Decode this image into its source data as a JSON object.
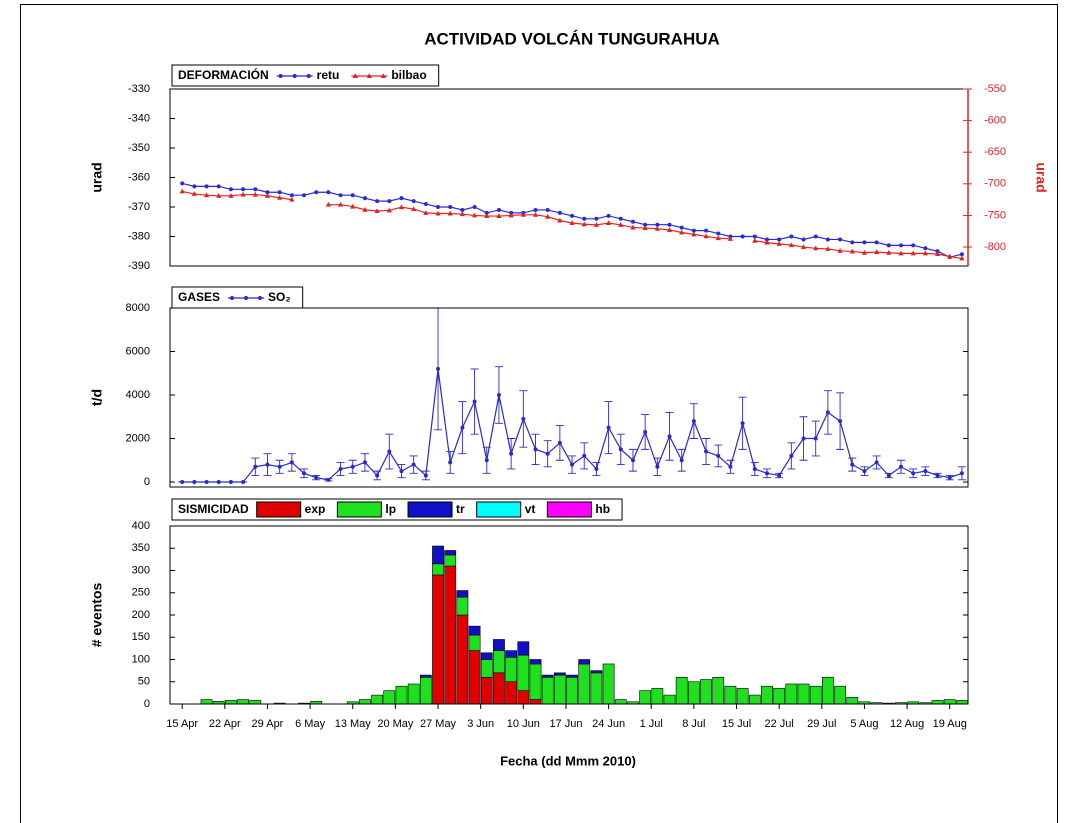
{
  "title": "ACTIVIDAD VOLCÁN TUNGURAHUA",
  "chart_data": [
    {
      "type": "line",
      "legend_title": "DEFORMACIÓN",
      "ylabel": "urad",
      "y2label": "urad",
      "xlim": [
        -2,
        129
      ],
      "x": [
        0,
        2,
        4,
        6,
        8,
        10,
        12,
        14,
        16,
        18,
        20,
        22,
        24,
        26,
        28,
        30,
        32,
        34,
        36,
        38,
        40,
        42,
        44,
        46,
        48,
        50,
        52,
        54,
        56,
        58,
        60,
        62,
        64,
        66,
        68,
        70,
        72,
        74,
        76,
        78,
        80,
        82,
        84,
        86,
        88,
        90,
        92,
        94,
        96,
        98,
        100,
        102,
        104,
        106,
        108,
        110,
        112,
        114,
        116,
        118,
        120,
        122,
        124,
        126,
        128
      ],
      "ylim": [
        -390,
        -330
      ],
      "yticks": [
        -390,
        -380,
        -370,
        -360,
        -350,
        -340,
        -330
      ],
      "y2lim": [
        -830,
        -550
      ],
      "y2ticks": [
        -800,
        -750,
        -700,
        -650,
        -600,
        -550
      ],
      "series": [
        {
          "name": "retu",
          "color": "#2a2ad6",
          "marker": "circle",
          "values": [
            -362,
            -363,
            -363,
            -363,
            -364,
            -364,
            -364,
            -365,
            -365,
            -366,
            -366,
            -365,
            -365,
            -366,
            -366,
            -367,
            -368,
            -368,
            -367,
            -368,
            -369,
            -370,
            -370,
            -371,
            -370,
            -372,
            -371,
            -372,
            -372,
            -371,
            -371,
            -372,
            -373,
            -374,
            -374,
            -373,
            -374,
            -375,
            -376,
            -376,
            -376,
            -377,
            -378,
            -378,
            -379,
            -380,
            -380,
            -380,
            -381,
            -381,
            -380,
            -381,
            -380,
            -381,
            -381,
            -382,
            -382,
            -382,
            -383,
            -383,
            -383,
            -384,
            -385,
            -387,
            -386
          ]
        },
        {
          "name": "bilbao",
          "color": "#e02424",
          "marker": "triangle",
          "axis": "y2",
          "values": [
            -712,
            -716,
            -718,
            -719,
            -719,
            -717,
            -717,
            -719,
            -722,
            -725,
            null,
            null,
            -733,
            -733,
            -736,
            -741,
            -743,
            -742,
            -737,
            -740,
            -746,
            -747,
            -747,
            -748,
            -750,
            -751,
            -751,
            -750,
            -749,
            -749,
            -752,
            -758,
            -762,
            -764,
            -765,
            -762,
            -765,
            -769,
            -770,
            -771,
            -773,
            -777,
            -780,
            -783,
            -786,
            -787,
            null,
            -790,
            -793,
            -795,
            -797,
            -800,
            -802,
            -803,
            -806,
            -807,
            -809,
            -808,
            -809,
            -810,
            -810,
            -810,
            -811,
            -815,
            -818
          ]
        }
      ]
    },
    {
      "type": "line",
      "legend_title": "GASES",
      "ylabel": "t/d",
      "xlim": [
        -2,
        129
      ],
      "x": [
        0,
        2,
        4,
        6,
        8,
        10,
        12,
        14,
        16,
        18,
        20,
        22,
        24,
        26,
        28,
        30,
        32,
        34,
        36,
        38,
        40,
        42,
        44,
        46,
        48,
        50,
        52,
        54,
        56,
        58,
        60,
        62,
        64,
        66,
        68,
        70,
        72,
        74,
        76,
        78,
        80,
        82,
        84,
        86,
        88,
        90,
        92,
        94,
        96,
        98,
        100,
        102,
        104,
        106,
        108,
        110,
        112,
        114,
        116,
        118,
        120,
        122,
        124,
        126,
        128
      ],
      "ylim": [
        -230,
        8000
      ],
      "yticks": [
        0,
        2000,
        4000,
        6000,
        8000
      ],
      "series": [
        {
          "name": "SO₂",
          "color": "#2a2ac8",
          "marker": "circle",
          "values": [
            0,
            0,
            0,
            0,
            0,
            0,
            700,
            800,
            700,
            900,
            400,
            200,
            100,
            600,
            700,
            900,
            300,
            1400,
            500,
            800,
            300,
            5200,
            900,
            2500,
            3700,
            1000,
            4000,
            1300,
            2900,
            1500,
            1300,
            1800,
            800,
            1200,
            600,
            2500,
            1500,
            1000,
            2300,
            700,
            2100,
            1000,
            2800,
            1400,
            1200,
            700,
            2700,
            600,
            400,
            300,
            1200,
            2000,
            2000,
            3200,
            2800,
            800,
            500,
            900,
            300,
            700,
            400,
            500,
            300,
            200,
            400
          ],
          "errors": [
            0,
            0,
            0,
            0,
            0,
            0,
            400,
            500,
            300,
            400,
            200,
            100,
            50,
            300,
            300,
            400,
            200,
            800,
            300,
            400,
            200,
            2800,
            500,
            1200,
            1500,
            600,
            1300,
            700,
            1300,
            700,
            600,
            800,
            400,
            600,
            300,
            1200,
            700,
            500,
            800,
            400,
            1100,
            500,
            800,
            600,
            500,
            300,
            1200,
            300,
            200,
            100,
            600,
            1000,
            800,
            1000,
            1300,
            300,
            200,
            300,
            100,
            300,
            200,
            200,
            100,
            100,
            300
          ]
        }
      ]
    },
    {
      "type": "bar",
      "legend_title": "SISMICIDAD",
      "ylabel": "# eventos",
      "xlabel": "Fecha (dd Mmm 2010)",
      "xlim": [
        -2,
        129
      ],
      "xticks": [
        {
          "value": 0,
          "label": "15 Apr"
        },
        {
          "value": 7,
          "label": "22 Apr"
        },
        {
          "value": 14,
          "label": "29 Apr"
        },
        {
          "value": 21,
          "label": "6 May"
        },
        {
          "value": 28,
          "label": "13 May"
        },
        {
          "value": 35,
          "label": "20 May"
        },
        {
          "value": 42,
          "label": "27 May"
        },
        {
          "value": 49,
          "label": "3 Jun"
        },
        {
          "value": 56,
          "label": "10 Jun"
        },
        {
          "value": 63,
          "label": "17 Jun"
        },
        {
          "value": 70,
          "label": "24 Jun"
        },
        {
          "value": 77,
          "label": "1 Jul"
        },
        {
          "value": 84,
          "label": "8 Jul"
        },
        {
          "value": 91,
          "label": "15 Jul"
        },
        {
          "value": 98,
          "label": "22 Jul"
        },
        {
          "value": 105,
          "label": "29 Jul"
        },
        {
          "value": 112,
          "label": "5 Aug"
        },
        {
          "value": 119,
          "label": "12 Aug"
        },
        {
          "value": 126,
          "label": "19 Aug"
        }
      ],
      "x": [
        0,
        2,
        4,
        6,
        8,
        10,
        12,
        14,
        16,
        18,
        20,
        22,
        24,
        26,
        28,
        30,
        32,
        34,
        36,
        38,
        40,
        42,
        44,
        46,
        48,
        50,
        52,
        54,
        56,
        58,
        60,
        62,
        64,
        66,
        68,
        70,
        72,
        74,
        76,
        78,
        80,
        82,
        84,
        86,
        88,
        90,
        92,
        94,
        96,
        98,
        100,
        102,
        104,
        106,
        108,
        110,
        112,
        114,
        116,
        118,
        120,
        122,
        124,
        126,
        128
      ],
      "ylim": [
        0,
        400
      ],
      "yticks": [
        0,
        50,
        100,
        150,
        200,
        250,
        300,
        350,
        400
      ],
      "series": [
        {
          "name": "exp",
          "color": "#e00000",
          "values": [
            0,
            0,
            0,
            0,
            0,
            0,
            0,
            0,
            0,
            0,
            0,
            0,
            0,
            0,
            0,
            0,
            0,
            0,
            0,
            0,
            0,
            290,
            310,
            200,
            120,
            60,
            70,
            50,
            30,
            10,
            0,
            0,
            0,
            0,
            0,
            0,
            0,
            0,
            0,
            0,
            0,
            0,
            0,
            0,
            0,
            0,
            0,
            0,
            0,
            0,
            0,
            0,
            0,
            0,
            0,
            0,
            0,
            0,
            0,
            0,
            0,
            0,
            0,
            0,
            0
          ]
        },
        {
          "name": "lp",
          "color": "#1ee01e",
          "values": [
            0,
            0,
            10,
            6,
            8,
            10,
            8,
            0,
            2,
            0,
            2,
            6,
            0,
            0,
            5,
            10,
            20,
            30,
            40,
            45,
            60,
            25,
            25,
            40,
            35,
            40,
            50,
            55,
            80,
            80,
            60,
            65,
            60,
            90,
            70,
            90,
            10,
            5,
            30,
            35,
            20,
            60,
            50,
            55,
            60,
            40,
            35,
            20,
            40,
            35,
            45,
            45,
            40,
            60,
            40,
            15,
            5,
            3,
            2,
            3,
            5,
            3,
            8,
            10,
            8
          ]
        },
        {
          "name": "tr",
          "color": "#1010c8",
          "values": [
            0,
            0,
            0,
            0,
            0,
            0,
            0,
            0,
            0,
            0,
            0,
            0,
            0,
            0,
            0,
            0,
            0,
            0,
            0,
            0,
            5,
            40,
            10,
            15,
            20,
            15,
            25,
            15,
            30,
            10,
            5,
            5,
            5,
            10,
            5,
            0,
            0,
            0,
            0,
            0,
            0,
            0,
            0,
            0,
            0,
            0,
            0,
            0,
            0,
            0,
            0,
            0,
            0,
            0,
            0,
            0,
            0,
            0,
            0,
            0,
            0,
            0,
            0,
            0,
            0
          ]
        },
        {
          "name": "vt",
          "color": "#00ffff",
          "values": [
            0,
            0,
            0,
            0,
            0,
            0,
            0,
            0,
            0,
            0,
            0,
            0,
            0,
            0,
            0,
            0,
            0,
            0,
            0,
            0,
            0,
            0,
            0,
            0,
            0,
            0,
            0,
            0,
            0,
            0,
            0,
            0,
            0,
            0,
            0,
            0,
            0,
            0,
            0,
            0,
            0,
            0,
            0,
            0,
            0,
            0,
            0,
            0,
            0,
            0,
            0,
            0,
            0,
            0,
            0,
            0,
            0,
            0,
            0,
            0,
            0,
            0,
            0,
            0,
            0
          ]
        },
        {
          "name": "hb",
          "color": "#ff00ff",
          "values": [
            0,
            0,
            0,
            0,
            0,
            0,
            0,
            0,
            0,
            0,
            0,
            0,
            0,
            0,
            0,
            0,
            0,
            0,
            0,
            0,
            0,
            0,
            0,
            0,
            0,
            0,
            0,
            0,
            0,
            0,
            0,
            0,
            0,
            0,
            0,
            0,
            0,
            0,
            0,
            0,
            0,
            0,
            0,
            0,
            0,
            0,
            0,
            0,
            0,
            0,
            0,
            0,
            0,
            0,
            0,
            0,
            0,
            0,
            0,
            0,
            0,
            0,
            0,
            0,
            0
          ]
        }
      ]
    }
  ]
}
